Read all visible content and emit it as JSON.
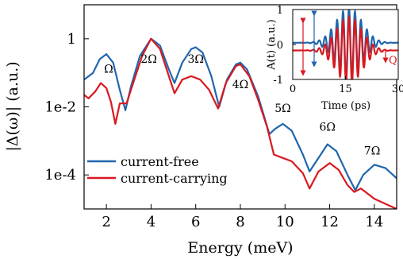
{
  "chart_data": [
    {
      "type": "line",
      "xlabel": "Energy (meV)",
      "ylabel": "|Δ(ω)| (a.u.)",
      "xlim": [
        1,
        15
      ],
      "ylim_log10": [
        -5,
        1
      ],
      "y_scale": "log",
      "x_ticks": [
        2,
        4,
        6,
        8,
        10,
        12,
        14
      ],
      "x_tick_labels": [
        "2",
        "4",
        "6",
        "8",
        "10",
        "12",
        "14"
      ],
      "y_ticks_log10": [
        0,
        -2,
        -4
      ],
      "y_tick_labels": [
        "1",
        "1e-2",
        "1e-4"
      ],
      "legend_position": "lower-left",
      "harmonic_labels": [
        {
          "text": "Ω",
          "x": 2.1,
          "log10_y": -1.0
        },
        {
          "text": "2Ω",
          "x": 3.9,
          "log10_y": -0.7
        },
        {
          "text": "3Ω",
          "x": 6.0,
          "log10_y": -0.7
        },
        {
          "text": "4Ω",
          "x": 8.0,
          "log10_y": -1.45
        },
        {
          "text": "5Ω",
          "x": 9.9,
          "log10_y": -2.15
        },
        {
          "text": "6Ω",
          "x": 11.9,
          "log10_y": -2.7
        },
        {
          "text": "7Ω",
          "x": 13.9,
          "log10_y": -3.4
        }
      ],
      "series": [
        {
          "name": "current-free",
          "color": "#2066ad",
          "points": [
            [
              1.0,
              -1.2
            ],
            [
              1.4,
              -1.0
            ],
            [
              1.7,
              -0.6
            ],
            [
              2.0,
              -0.45
            ],
            [
              2.3,
              -0.7
            ],
            [
              2.6,
              -1.5
            ],
            [
              2.85,
              -2.1
            ],
            [
              3.1,
              -1.4
            ],
            [
              3.5,
              -0.5
            ],
            [
              4.0,
              0.0
            ],
            [
              4.4,
              -0.2
            ],
            [
              4.8,
              -0.9
            ],
            [
              5.05,
              -1.3
            ],
            [
              5.4,
              -0.7
            ],
            [
              5.8,
              -0.3
            ],
            [
              6.0,
              -0.25
            ],
            [
              6.3,
              -0.4
            ],
            [
              6.7,
              -1.1
            ],
            [
              7.05,
              -2.0
            ],
            [
              7.4,
              -1.2
            ],
            [
              7.8,
              -0.75
            ],
            [
              8.0,
              -0.7
            ],
            [
              8.3,
              -0.9
            ],
            [
              8.8,
              -1.7
            ],
            [
              9.3,
              -2.8
            ],
            [
              9.55,
              -2.65
            ],
            [
              9.9,
              -2.5
            ],
            [
              10.3,
              -2.7
            ],
            [
              10.8,
              -3.4
            ],
            [
              11.1,
              -3.9
            ],
            [
              11.4,
              -3.6
            ],
            [
              11.9,
              -3.1
            ],
            [
              12.3,
              -3.3
            ],
            [
              12.8,
              -4.0
            ],
            [
              13.15,
              -4.45
            ],
            [
              13.5,
              -4.0
            ],
            [
              14.0,
              -3.7
            ],
            [
              14.5,
              -3.8
            ],
            [
              15.0,
              -4.1
            ]
          ]
        },
        {
          "name": "current-carrying",
          "color": "#d8191f",
          "points": [
            [
              1.0,
              -1.65
            ],
            [
              1.2,
              -1.75
            ],
            [
              1.5,
              -1.55
            ],
            [
              1.75,
              -1.3
            ],
            [
              2.0,
              -1.45
            ],
            [
              2.2,
              -1.85
            ],
            [
              2.4,
              -2.5
            ],
            [
              2.6,
              -1.9
            ],
            [
              2.9,
              -1.9
            ],
            [
              3.2,
              -1.3
            ],
            [
              3.6,
              -0.5
            ],
            [
              4.0,
              0.0
            ],
            [
              4.4,
              -0.3
            ],
            [
              4.8,
              -1.1
            ],
            [
              5.05,
              -1.6
            ],
            [
              5.4,
              -1.2
            ],
            [
              5.8,
              -1.1
            ],
            [
              6.2,
              -1.2
            ],
            [
              6.6,
              -1.5
            ],
            [
              7.0,
              -2.05
            ],
            [
              7.35,
              -1.3
            ],
            [
              7.8,
              -0.8
            ],
            [
              8.0,
              -0.75
            ],
            [
              8.4,
              -1.1
            ],
            [
              8.8,
              -1.8
            ],
            [
              9.2,
              -2.6
            ],
            [
              9.5,
              -3.4
            ],
            [
              9.9,
              -3.5
            ],
            [
              10.3,
              -3.6
            ],
            [
              10.8,
              -3.95
            ],
            [
              11.1,
              -4.4
            ],
            [
              11.5,
              -3.9
            ],
            [
              12.0,
              -3.65
            ],
            [
              12.4,
              -3.85
            ],
            [
              12.8,
              -4.3
            ],
            [
              13.1,
              -4.5
            ],
            [
              13.4,
              -4.4
            ],
            [
              14.0,
              -4.7
            ],
            [
              14.5,
              -4.85
            ],
            [
              15.0,
              -5.0
            ]
          ]
        }
      ]
    },
    {
      "type": "line",
      "xlabel": "Time (ps)",
      "ylabel": "A(t) (a.u.)",
      "xlim": [
        0,
        30
      ],
      "ylim": [
        -1,
        1
      ],
      "x_ticks": [
        0,
        15,
        30
      ],
      "x_tick_labels": [
        "0",
        "15",
        "30"
      ],
      "y_ticks": [
        1,
        0,
        -1
      ],
      "y_tick_labels": [
        "1",
        "0",
        "-1"
      ],
      "annotations": [
        {
          "text": "Q"
        }
      ],
      "series": [
        {
          "name": "current-free",
          "color": "#2066ad",
          "offset": 0.05,
          "amplitude": 1.0
        },
        {
          "name": "current-carrying",
          "color": "#d8191f",
          "offset": -0.17,
          "amplitude": 0.95
        }
      ]
    }
  ]
}
